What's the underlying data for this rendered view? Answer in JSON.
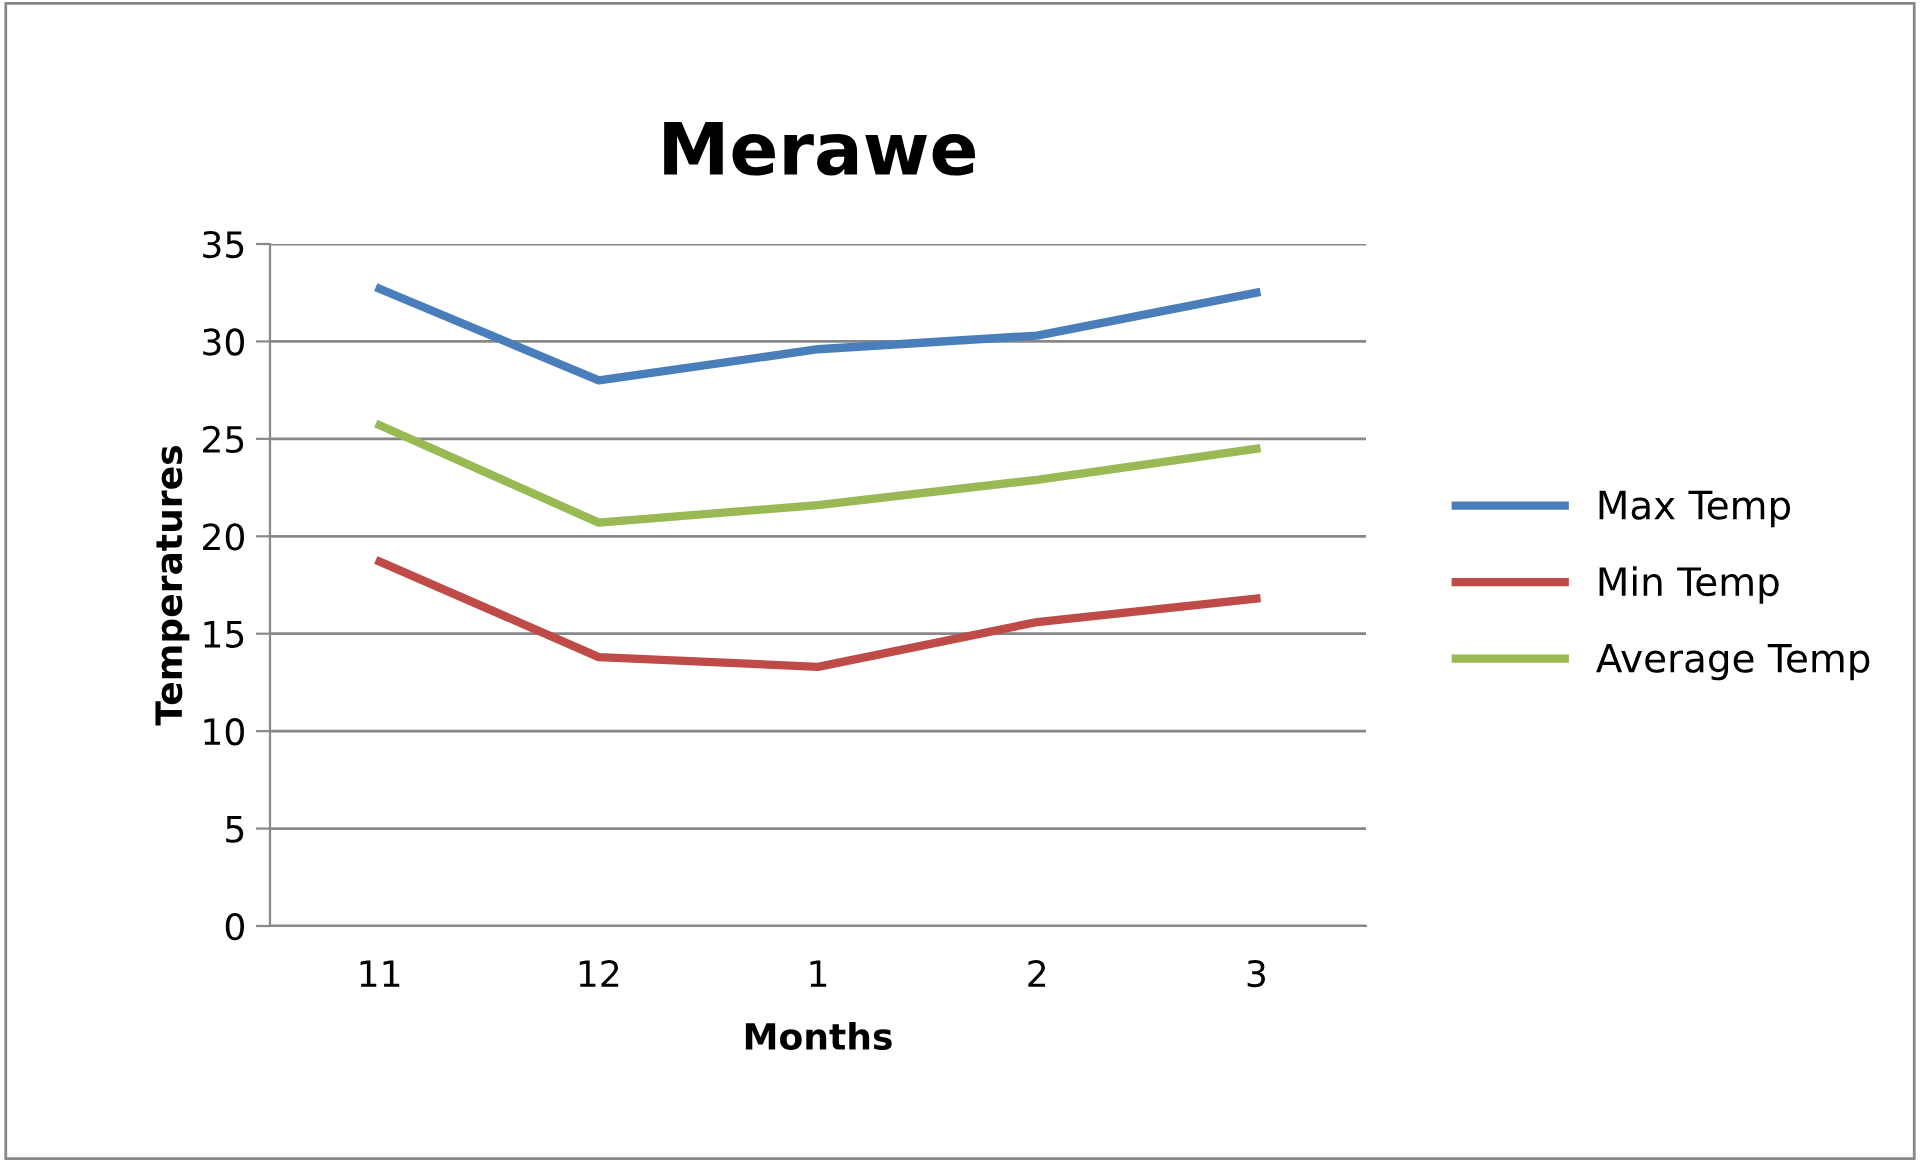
{
  "chart_data": {
    "type": "line",
    "title": "Merawe",
    "xlabel": "Months",
    "ylabel": "Temperatures",
    "categories": [
      "11",
      "12",
      "1",
      "2",
      "3"
    ],
    "series": [
      {
        "name": "Max Temp",
        "color": "#4a7ebb",
        "values": [
          32.7,
          28.0,
          29.6,
          30.3,
          32.5
        ]
      },
      {
        "name": "Min Temp",
        "color": "#be4b48",
        "values": [
          18.7,
          13.8,
          13.3,
          15.6,
          16.8
        ]
      },
      {
        "name": "Average Temp",
        "color": "#98b954",
        "values": [
          25.7,
          20.7,
          21.6,
          22.9,
          24.5
        ]
      }
    ],
    "ylim": [
      0,
      35
    ],
    "yticks": [
      0,
      5,
      10,
      15,
      20,
      25,
      30,
      35
    ],
    "grid": "y",
    "legend": "right",
    "marker": "none",
    "line_style": "solid"
  }
}
